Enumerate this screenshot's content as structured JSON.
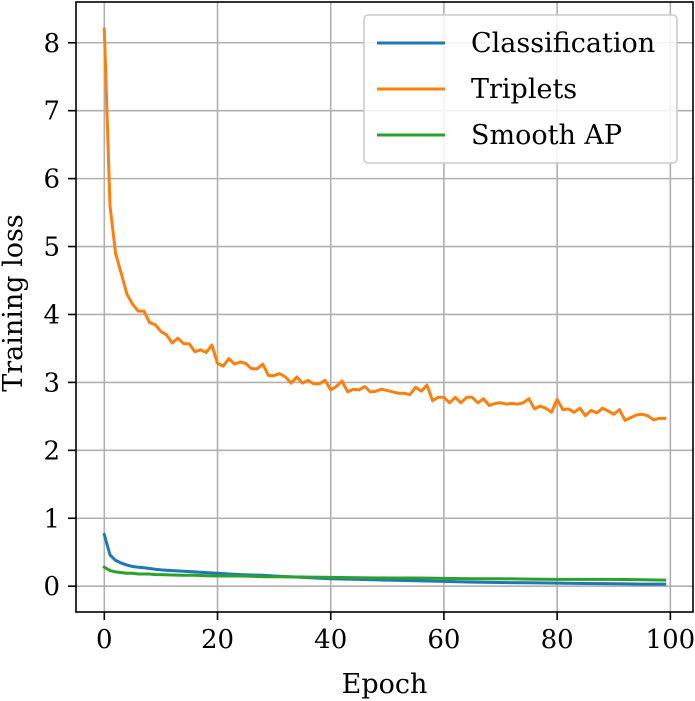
{
  "chart_data": {
    "type": "line",
    "title": "",
    "xlabel": "Epoch",
    "ylabel": "Training loss",
    "xlim": [
      -5,
      104
    ],
    "ylim": [
      -0.38,
      8.6
    ],
    "xticks": [
      0,
      20,
      40,
      60,
      80,
      100
    ],
    "yticks": [
      0,
      1,
      2,
      3,
      4,
      5,
      6,
      7,
      8
    ],
    "grid": true,
    "legend_position": "top-right",
    "series": [
      {
        "name": "Classification",
        "color": "#1f77b4",
        "x": [
          0,
          1,
          2,
          3,
          4,
          5,
          6,
          7,
          8,
          9,
          10,
          12,
          14,
          16,
          18,
          20,
          22,
          24,
          26,
          28,
          30,
          35,
          40,
          45,
          50,
          55,
          60,
          65,
          70,
          75,
          80,
          85,
          90,
          95,
          99
        ],
        "y": [
          0.76,
          0.46,
          0.38,
          0.34,
          0.31,
          0.29,
          0.28,
          0.27,
          0.26,
          0.25,
          0.24,
          0.23,
          0.22,
          0.21,
          0.2,
          0.19,
          0.18,
          0.17,
          0.165,
          0.16,
          0.15,
          0.13,
          0.11,
          0.1,
          0.09,
          0.08,
          0.07,
          0.06,
          0.055,
          0.05,
          0.045,
          0.04,
          0.035,
          0.03,
          0.03
        ]
      },
      {
        "name": "Triplets",
        "color": "#ff7f0e",
        "x": [
          0,
          1,
          2,
          3,
          4,
          5,
          6,
          7,
          8,
          9,
          10,
          11,
          12,
          13,
          14,
          15,
          16,
          17,
          18,
          19,
          20,
          21,
          22,
          23,
          24,
          25,
          26,
          27,
          28,
          29,
          30,
          31,
          32,
          33,
          34,
          35,
          36,
          37,
          38,
          39,
          40,
          41,
          42,
          43,
          44,
          45,
          46,
          47,
          48,
          49,
          50,
          51,
          52,
          53,
          54,
          55,
          56,
          57,
          58,
          59,
          60,
          61,
          62,
          63,
          64,
          65,
          66,
          67,
          68,
          69,
          70,
          71,
          72,
          73,
          74,
          75,
          76,
          77,
          78,
          79,
          80,
          81,
          82,
          83,
          84,
          85,
          86,
          87,
          88,
          89,
          90,
          91,
          92,
          93,
          94,
          95,
          96,
          97,
          98,
          99
        ],
        "y": [
          8.2,
          5.6,
          4.9,
          4.6,
          4.3,
          4.15,
          4.05,
          4.05,
          3.88,
          3.85,
          3.75,
          3.7,
          3.58,
          3.65,
          3.57,
          3.57,
          3.45,
          3.48,
          3.44,
          3.55,
          3.28,
          3.24,
          3.35,
          3.27,
          3.3,
          3.28,
          3.2,
          3.2,
          3.27,
          3.1,
          3.1,
          3.13,
          3.08,
          2.99,
          3.08,
          2.99,
          3.03,
          2.98,
          2.98,
          3.03,
          2.89,
          2.94,
          3.02,
          2.86,
          2.9,
          2.89,
          2.94,
          2.86,
          2.87,
          2.9,
          2.88,
          2.86,
          2.84,
          2.84,
          2.82,
          2.93,
          2.87,
          2.96,
          2.73,
          2.78,
          2.78,
          2.7,
          2.78,
          2.7,
          2.78,
          2.78,
          2.7,
          2.76,
          2.66,
          2.69,
          2.7,
          2.68,
          2.69,
          2.68,
          2.7,
          2.76,
          2.61,
          2.65,
          2.62,
          2.56,
          2.75,
          2.6,
          2.61,
          2.56,
          2.62,
          2.51,
          2.59,
          2.55,
          2.62,
          2.58,
          2.53,
          2.6,
          2.44,
          2.48,
          2.52,
          2.53,
          2.51,
          2.45,
          2.47,
          2.47
        ]
      },
      {
        "name": "Smooth AP",
        "color": "#2ca02c",
        "x": [
          0,
          1,
          2,
          3,
          4,
          5,
          6,
          7,
          8,
          9,
          10,
          12,
          14,
          16,
          18,
          20,
          22,
          24,
          26,
          28,
          30,
          35,
          40,
          45,
          50,
          55,
          60,
          65,
          70,
          75,
          80,
          85,
          90,
          95,
          99
        ],
        "y": [
          0.28,
          0.23,
          0.21,
          0.2,
          0.19,
          0.19,
          0.18,
          0.18,
          0.18,
          0.17,
          0.17,
          0.165,
          0.16,
          0.16,
          0.155,
          0.15,
          0.15,
          0.15,
          0.145,
          0.14,
          0.14,
          0.135,
          0.13,
          0.125,
          0.12,
          0.12,
          0.115,
          0.11,
          0.11,
          0.105,
          0.1,
          0.1,
          0.1,
          0.095,
          0.09
        ]
      }
    ]
  }
}
